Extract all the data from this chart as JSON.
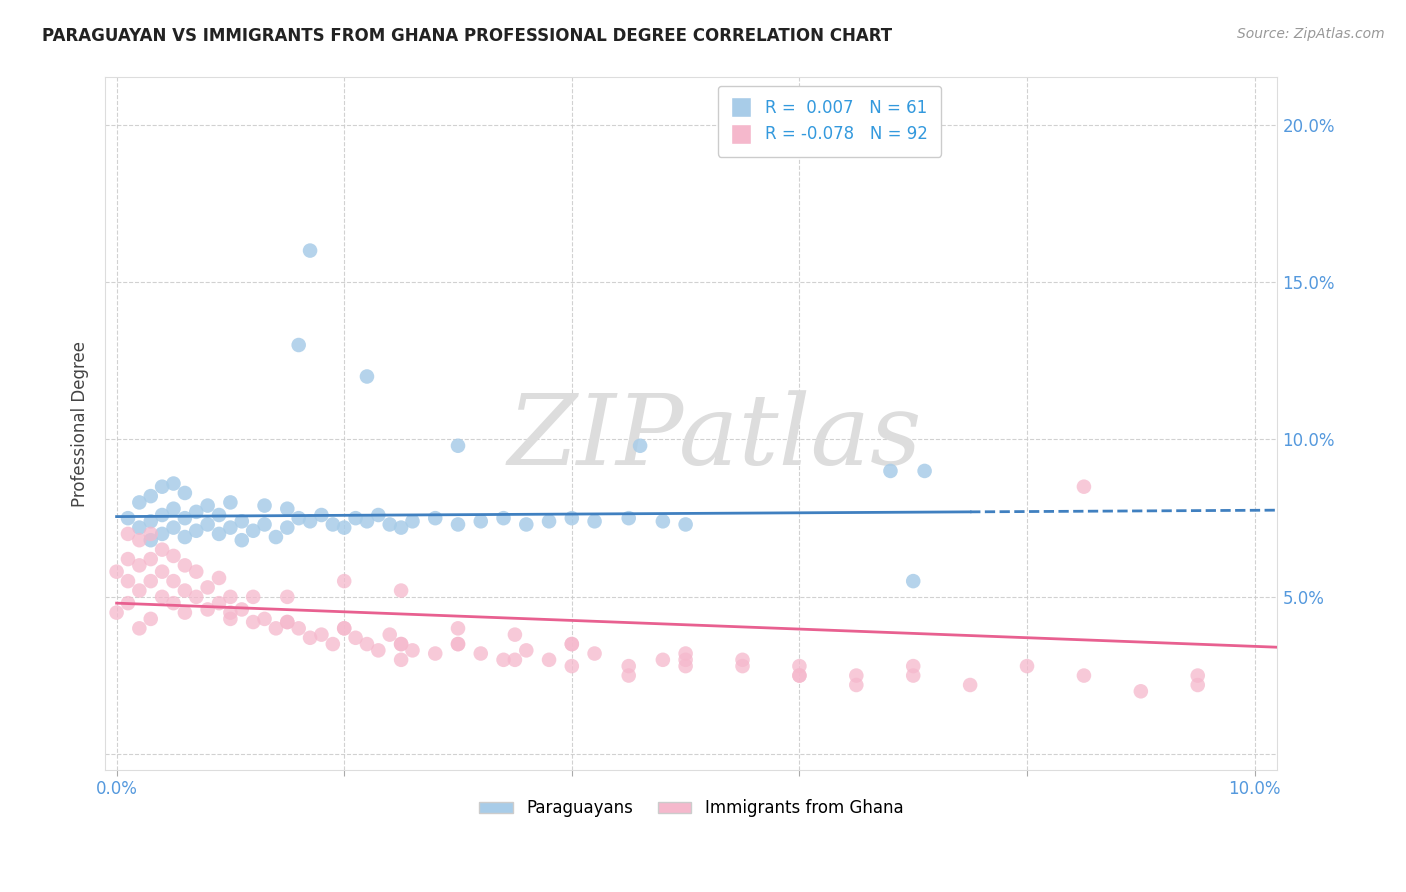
{
  "title": "PARAGUAYAN VS IMMIGRANTS FROM GHANA PROFESSIONAL DEGREE CORRELATION CHART",
  "source": "Source: ZipAtlas.com",
  "ylabel": "Professional Degree",
  "xlim": [
    -0.001,
    0.102
  ],
  "ylim": [
    -0.005,
    0.215
  ],
  "blue_R": 0.007,
  "blue_N": 61,
  "pink_R": -0.078,
  "pink_N": 92,
  "blue_color": "#a8cce8",
  "pink_color": "#f5b8cc",
  "blue_line_color": "#4080c0",
  "pink_line_color": "#e86090",
  "legend_labels": [
    "Paraguayans",
    "Immigrants from Ghana"
  ],
  "watermark_text": "ZIPatlas",
  "blue_x": [
    0.001,
    0.002,
    0.002,
    0.003,
    0.003,
    0.003,
    0.004,
    0.004,
    0.004,
    0.005,
    0.005,
    0.005,
    0.006,
    0.006,
    0.006,
    0.007,
    0.007,
    0.008,
    0.008,
    0.009,
    0.009,
    0.01,
    0.01,
    0.011,
    0.011,
    0.012,
    0.013,
    0.013,
    0.014,
    0.015,
    0.015,
    0.016,
    0.017,
    0.018,
    0.019,
    0.02,
    0.021,
    0.022,
    0.023,
    0.024,
    0.025,
    0.026,
    0.028,
    0.03,
    0.032,
    0.034,
    0.036,
    0.038,
    0.04,
    0.042,
    0.045,
    0.048,
    0.05,
    0.016,
    0.017,
    0.022,
    0.03,
    0.046,
    0.068,
    0.07,
    0.071
  ],
  "blue_y": [
    0.075,
    0.072,
    0.08,
    0.068,
    0.074,
    0.082,
    0.07,
    0.076,
    0.085,
    0.072,
    0.078,
    0.086,
    0.069,
    0.075,
    0.083,
    0.071,
    0.077,
    0.073,
    0.079,
    0.07,
    0.076,
    0.072,
    0.08,
    0.068,
    0.074,
    0.071,
    0.073,
    0.079,
    0.069,
    0.072,
    0.078,
    0.075,
    0.074,
    0.076,
    0.073,
    0.072,
    0.075,
    0.074,
    0.076,
    0.073,
    0.072,
    0.074,
    0.075,
    0.073,
    0.074,
    0.075,
    0.073,
    0.074,
    0.075,
    0.074,
    0.075,
    0.074,
    0.073,
    0.13,
    0.16,
    0.12,
    0.098,
    0.098,
    0.09,
    0.055,
    0.09
  ],
  "pink_x": [
    0.0,
    0.0,
    0.001,
    0.001,
    0.001,
    0.001,
    0.002,
    0.002,
    0.002,
    0.002,
    0.003,
    0.003,
    0.003,
    0.003,
    0.004,
    0.004,
    0.004,
    0.005,
    0.005,
    0.005,
    0.006,
    0.006,
    0.006,
    0.007,
    0.007,
    0.008,
    0.008,
    0.009,
    0.009,
    0.01,
    0.01,
    0.011,
    0.012,
    0.012,
    0.013,
    0.014,
    0.015,
    0.015,
    0.016,
    0.017,
    0.018,
    0.019,
    0.02,
    0.021,
    0.022,
    0.023,
    0.024,
    0.025,
    0.026,
    0.028,
    0.03,
    0.032,
    0.034,
    0.036,
    0.038,
    0.04,
    0.042,
    0.045,
    0.048,
    0.05,
    0.055,
    0.06,
    0.065,
    0.07,
    0.025,
    0.03,
    0.035,
    0.04,
    0.045,
    0.05,
    0.055,
    0.06,
    0.065,
    0.07,
    0.075,
    0.08,
    0.085,
    0.09,
    0.095,
    0.01,
    0.015,
    0.02,
    0.025,
    0.03,
    0.035,
    0.04,
    0.05,
    0.06,
    0.085,
    0.095,
    0.02,
    0.025
  ],
  "pink_y": [
    0.058,
    0.045,
    0.055,
    0.062,
    0.07,
    0.048,
    0.052,
    0.06,
    0.068,
    0.04,
    0.055,
    0.062,
    0.07,
    0.043,
    0.05,
    0.058,
    0.065,
    0.048,
    0.055,
    0.063,
    0.045,
    0.052,
    0.06,
    0.05,
    0.058,
    0.046,
    0.053,
    0.048,
    0.056,
    0.043,
    0.05,
    0.046,
    0.042,
    0.05,
    0.043,
    0.04,
    0.042,
    0.05,
    0.04,
    0.037,
    0.038,
    0.035,
    0.04,
    0.037,
    0.035,
    0.033,
    0.038,
    0.035,
    0.033,
    0.032,
    0.035,
    0.032,
    0.03,
    0.033,
    0.03,
    0.035,
    0.032,
    0.028,
    0.03,
    0.032,
    0.03,
    0.028,
    0.025,
    0.028,
    0.03,
    0.035,
    0.03,
    0.028,
    0.025,
    0.03,
    0.028,
    0.025,
    0.022,
    0.025,
    0.022,
    0.028,
    0.025,
    0.02,
    0.022,
    0.045,
    0.042,
    0.04,
    0.035,
    0.04,
    0.038,
    0.035,
    0.028,
    0.025,
    0.085,
    0.025,
    0.055,
    0.052
  ]
}
